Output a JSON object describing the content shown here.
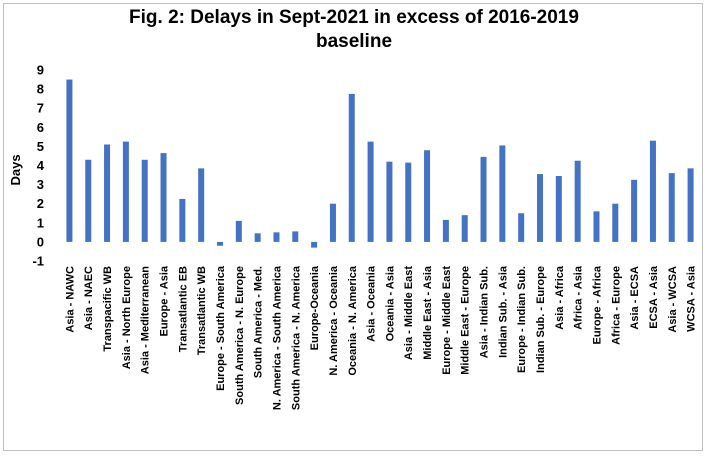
{
  "chart_data": {
    "type": "bar",
    "title_line1": "Fig. 2: Delays in Sept-2021 in excess of 2016-2019",
    "title_line2": "baseline",
    "xlabel": "",
    "ylabel": "Days",
    "ylim": [
      -1,
      9
    ],
    "yticks": [
      "-1",
      "0",
      "1",
      "2",
      "3",
      "4",
      "5",
      "6",
      "7",
      "8",
      "9"
    ],
    "grid": false,
    "legend": "none",
    "bar_color": "#4472C4",
    "categories": [
      "Asia - NAWC",
      "Asia - NAEC",
      "Transpacific WB",
      "Asia - North Europe",
      "Asia - Mediterranean",
      "Europe - Asia",
      "Transatlantic EB",
      "Transatlantic WB",
      "Europe - South America",
      "South America - N. Europe",
      "South America - Med.",
      "N. America - South America",
      "South America - N. America",
      "Europe-Oceania",
      "N. America - Oceania",
      "Oceania - N. America",
      "Asia - Oceania",
      "Oceania - Asia",
      "Asia - Middle East",
      "Middle East - Asia",
      "Europe - Middle East",
      "Middle East - Europe",
      "Asia - Indian Sub.",
      "Indian Sub. - Asia",
      "Europe - Indian Sub.",
      "Indian Sub. - Europe",
      "Asia - Africa",
      "Africa - Asia",
      "Europe - Africa",
      "Africa - Europe",
      "Asia - ECSA",
      "ECSA - Asia",
      "Asia - WCSA",
      "WCSA - Asia"
    ],
    "values": [
      8.5,
      4.3,
      5.1,
      5.25,
      4.3,
      4.65,
      2.25,
      3.85,
      -0.2,
      1.1,
      0.45,
      0.5,
      0.55,
      -0.3,
      2.0,
      7.75,
      5.25,
      4.2,
      4.15,
      4.8,
      1.15,
      1.4,
      4.45,
      5.05,
      1.5,
      3.55,
      3.45,
      4.25,
      1.6,
      2.0,
      3.25,
      5.3,
      3.6,
      3.85
    ]
  }
}
